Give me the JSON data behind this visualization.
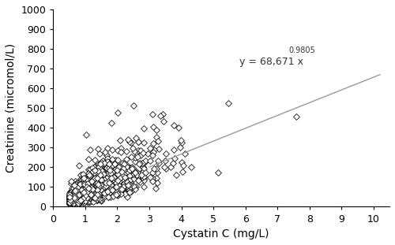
{
  "xlabel": "Cystatin C (mg/L)",
  "ylabel": "Creatinine (micromol/L)",
  "xlim": [
    0.0,
    10.5
  ],
  "ylim": [
    0,
    1000
  ],
  "xticks": [
    0,
    1,
    2,
    3,
    4,
    5,
    6,
    7,
    8,
    9,
    10
  ],
  "yticks": [
    0,
    100,
    200,
    300,
    400,
    500,
    600,
    700,
    800,
    900,
    1000
  ],
  "equation_base": "y = 68,671 x",
  "equation_exp": "0.9805",
  "fit_coef": 68.671,
  "fit_exp": 0.9805,
  "fit_x_start": 3.0,
  "fit_x_end": 10.2,
  "line_color": "#999999",
  "marker": "D",
  "marker_size": 4,
  "marker_facecolor": "white",
  "marker_edgecolor": "#111111",
  "marker_edgewidth": 0.6,
  "n_points": 1668,
  "seed": 42,
  "background_color": "#ffffff",
  "xlabel_fontsize": 10,
  "ylabel_fontsize": 10,
  "tick_fontsize": 9,
  "eq_x": 5.8,
  "eq_y": 720
}
